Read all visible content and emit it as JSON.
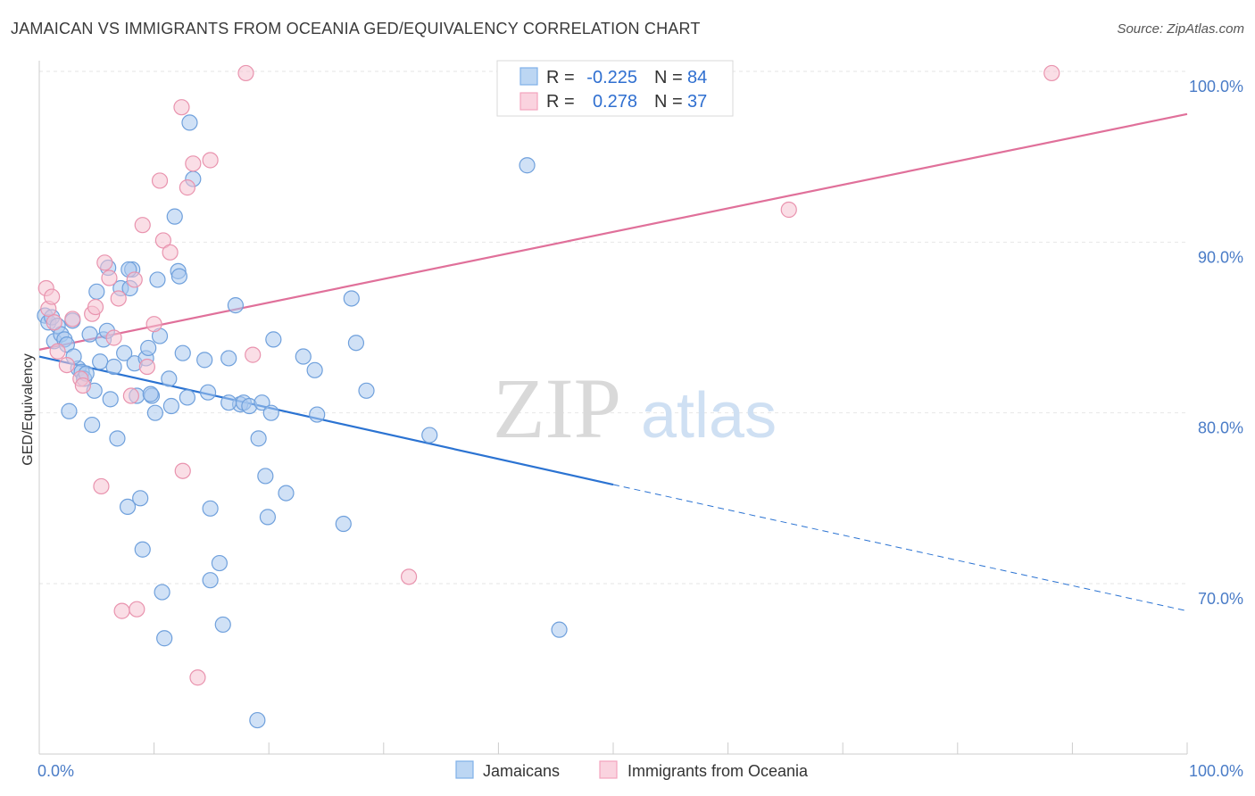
{
  "header": {
    "title": "JAMAICAN VS IMMIGRANTS FROM OCEANIA GED/EQUIVALENCY CORRELATION CHART",
    "source": "Source: ZipAtlas.com"
  },
  "watermark": {
    "zip": "ZIP",
    "atlas": "atlas"
  },
  "legend_top": {
    "r_label": "R =",
    "n_label": "N =",
    "rows": [
      {
        "r": "-0.225",
        "n": "84",
        "color": "#7fb0e8"
      },
      {
        "r": "0.278",
        "n": "37",
        "color": "#f2a4bd"
      }
    ]
  },
  "colors": {
    "blue_fill": "#a9c9ef",
    "blue_stroke": "#6fa0dc",
    "blue_line": "#2b73d2",
    "pink_fill": "#f6c2d2",
    "pink_stroke": "#e993ae",
    "pink_line": "#e0709a"
  },
  "chart_data": {
    "type": "scatter",
    "title": "JAMAICAN VS IMMIGRANTS FROM OCEANIA GED/EQUIVALENCY CORRELATION CHART",
    "xlabel": "",
    "ylabel": "GED/Equivalency",
    "xlim": [
      0,
      100
    ],
    "ylim": [
      60,
      102
    ],
    "x_tick_labels": [
      "0.0%",
      "100.0%"
    ],
    "y_ticks": [
      70,
      80,
      90,
      100
    ],
    "y_tick_labels": [
      "70.0%",
      "80.0%",
      "90.0%",
      "100.0%"
    ],
    "grid": true,
    "legend_position": "bottom-center",
    "series": [
      {
        "name": "Jamaicans",
        "r": -0.225,
        "n": 84,
        "trend": {
          "x0": 0,
          "y0": 83.3,
          "x1": 50,
          "y1": 75.8,
          "dash_to_x": 100,
          "dash_to_y": 68.4
        },
        "points": [
          [
            0.5,
            85.7
          ],
          [
            0.8,
            85.3
          ],
          [
            1.1,
            85.6
          ],
          [
            1.3,
            84.2
          ],
          [
            1.6,
            85.1
          ],
          [
            1.9,
            84.6
          ],
          [
            2.2,
            84.3
          ],
          [
            2.6,
            80.1
          ],
          [
            2.4,
            84.0
          ],
          [
            2.9,
            85.4
          ],
          [
            3.4,
            82.6
          ],
          [
            3.7,
            82.4
          ],
          [
            3.9,
            82.0
          ],
          [
            4.1,
            82.3
          ],
          [
            4.4,
            84.6
          ],
          [
            4.6,
            79.3
          ],
          [
            4.8,
            81.3
          ],
          [
            5.0,
            87.1
          ],
          [
            5.3,
            83.0
          ],
          [
            5.6,
            84.3
          ],
          [
            5.9,
            84.8
          ],
          [
            6.2,
            80.8
          ],
          [
            6.5,
            82.7
          ],
          [
            6.8,
            78.5
          ],
          [
            7.1,
            87.3
          ],
          [
            7.4,
            83.5
          ],
          [
            7.7,
            74.5
          ],
          [
            7.9,
            87.3
          ],
          [
            8.1,
            88.4
          ],
          [
            8.3,
            82.9
          ],
          [
            8.5,
            81.0
          ],
          [
            8.8,
            75.0
          ],
          [
            9.0,
            72.0
          ],
          [
            9.3,
            83.2
          ],
          [
            9.5,
            83.8
          ],
          [
            9.8,
            81.0
          ],
          [
            10.1,
            80.0
          ],
          [
            10.3,
            87.8
          ],
          [
            10.5,
            84.5
          ],
          [
            10.7,
            69.5
          ],
          [
            10.9,
            66.8
          ],
          [
            11.3,
            82.0
          ],
          [
            11.5,
            80.4
          ],
          [
            11.8,
            91.5
          ],
          [
            12.1,
            88.3
          ],
          [
            12.5,
            83.5
          ],
          [
            12.9,
            80.9
          ],
          [
            13.1,
            97.0
          ],
          [
            13.4,
            93.7
          ],
          [
            14.4,
            83.1
          ],
          [
            14.7,
            81.2
          ],
          [
            14.9,
            74.4
          ],
          [
            14.9,
            70.2
          ],
          [
            15.7,
            71.2
          ],
          [
            16.0,
            67.6
          ],
          [
            16.5,
            83.2
          ],
          [
            17.1,
            86.3
          ],
          [
            17.5,
            80.5
          ],
          [
            17.8,
            80.6
          ],
          [
            18.3,
            80.4
          ],
          [
            19.1,
            78.5
          ],
          [
            19.4,
            80.6
          ],
          [
            19.7,
            76.3
          ],
          [
            19.9,
            73.9
          ],
          [
            20.2,
            80.0
          ],
          [
            20.4,
            84.3
          ],
          [
            21.5,
            75.3
          ],
          [
            23.0,
            83.3
          ],
          [
            24.0,
            82.5
          ],
          [
            24.2,
            79.9
          ],
          [
            26.5,
            73.5
          ],
          [
            27.2,
            86.7
          ],
          [
            27.6,
            84.1
          ],
          [
            28.5,
            81.3
          ],
          [
            34.0,
            78.7
          ],
          [
            42.5,
            94.5
          ],
          [
            45.3,
            67.3
          ],
          [
            19.0,
            62.0
          ],
          [
            12.2,
            88.0
          ],
          [
            7.8,
            88.4
          ],
          [
            6.0,
            88.5
          ],
          [
            9.7,
            81.1
          ],
          [
            16.5,
            80.6
          ],
          [
            3.0,
            83.3
          ]
        ]
      },
      {
        "name": "Immigrants from Oceania",
        "r": 0.278,
        "n": 37,
        "trend": {
          "x0": 0,
          "y0": 83.7,
          "x1": 100,
          "y1": 97.5
        },
        "points": [
          [
            0.6,
            87.3
          ],
          [
            0.8,
            86.1
          ],
          [
            1.1,
            86.8
          ],
          [
            1.3,
            85.3
          ],
          [
            1.6,
            83.6
          ],
          [
            2.4,
            82.8
          ],
          [
            2.9,
            85.5
          ],
          [
            3.6,
            82.0
          ],
          [
            3.8,
            81.6
          ],
          [
            4.6,
            85.8
          ],
          [
            4.9,
            86.2
          ],
          [
            5.4,
            75.7
          ],
          [
            5.7,
            88.8
          ],
          [
            6.1,
            87.9
          ],
          [
            6.5,
            84.4
          ],
          [
            6.9,
            86.7
          ],
          [
            7.2,
            68.4
          ],
          [
            8.0,
            81.0
          ],
          [
            8.3,
            87.8
          ],
          [
            8.5,
            68.5
          ],
          [
            9.0,
            91.0
          ],
          [
            9.4,
            82.7
          ],
          [
            10.0,
            85.2
          ],
          [
            10.5,
            93.6
          ],
          [
            10.8,
            90.1
          ],
          [
            11.4,
            89.4
          ],
          [
            12.4,
            97.9
          ],
          [
            12.5,
            76.6
          ],
          [
            12.9,
            93.2
          ],
          [
            13.4,
            94.6
          ],
          [
            13.8,
            64.5
          ],
          [
            14.9,
            94.8
          ],
          [
            18.0,
            99.9
          ],
          [
            18.6,
            83.4
          ],
          [
            32.2,
            70.4
          ],
          [
            65.3,
            91.9
          ],
          [
            88.2,
            99.9
          ]
        ]
      }
    ]
  },
  "legend_bottom": {
    "items": [
      {
        "label": "Jamaicans"
      },
      {
        "label": "Immigrants from Oceania"
      }
    ]
  }
}
